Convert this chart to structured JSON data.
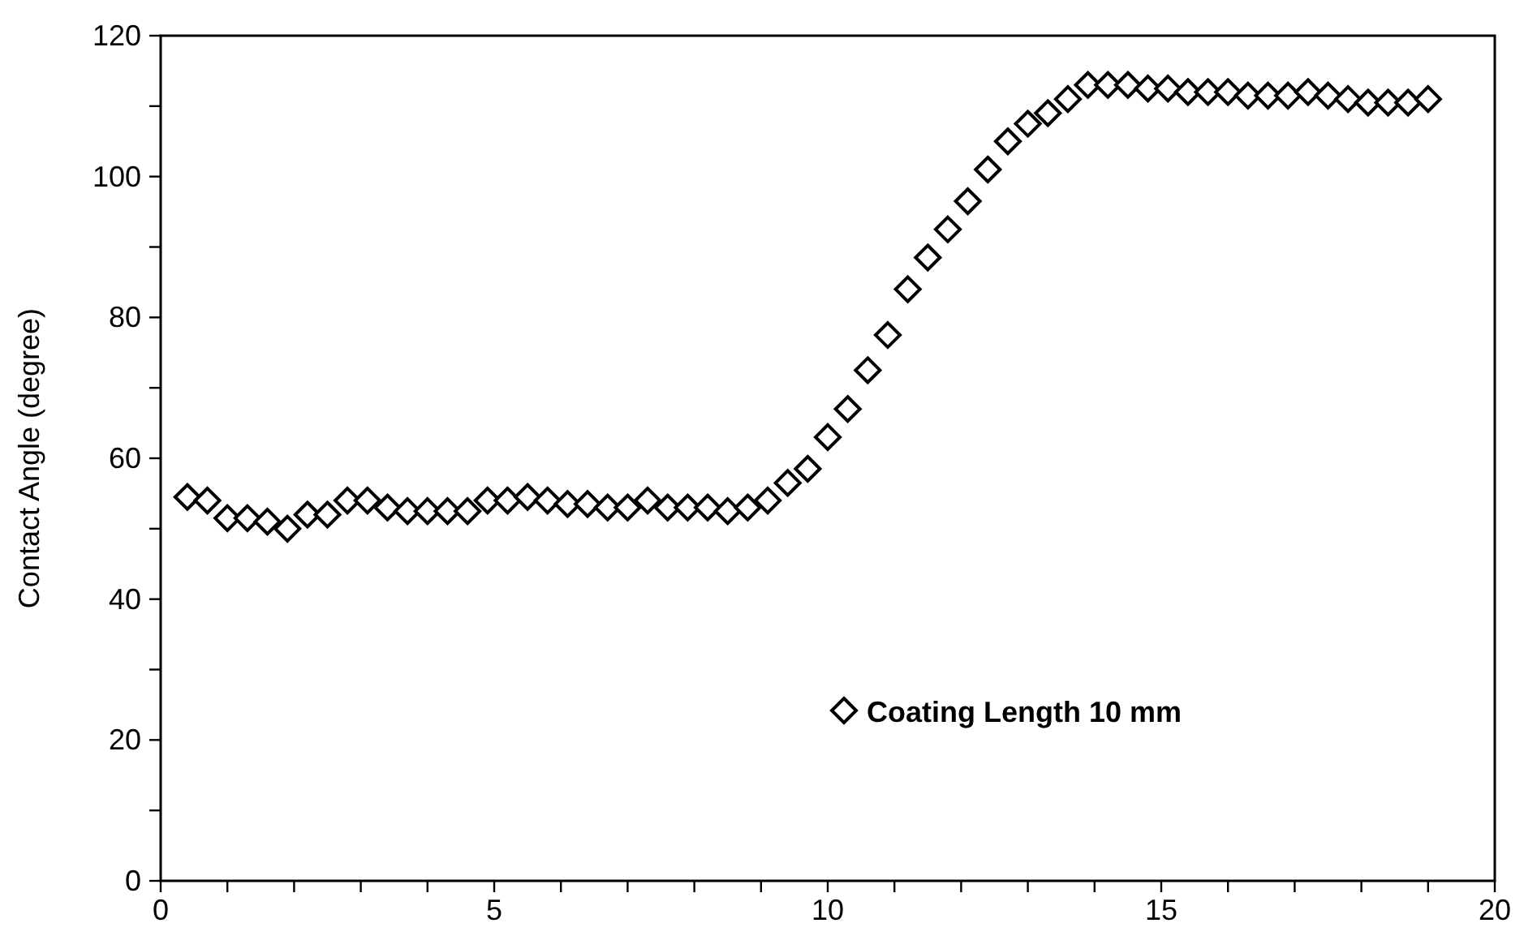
{
  "chart_data": {
    "type": "scatter",
    "ylabel": "Contact Angle (degree)",
    "x": [
      0.4,
      0.7,
      1.0,
      1.3,
      1.6,
      1.9,
      2.2,
      2.5,
      2.8,
      3.1,
      3.4,
      3.7,
      4.0,
      4.3,
      4.6,
      4.9,
      5.2,
      5.5,
      5.8,
      6.1,
      6.4,
      6.7,
      7.0,
      7.3,
      7.6,
      7.9,
      8.2,
      8.5,
      8.8,
      9.1,
      9.4,
      9.7,
      10.0,
      10.3,
      10.6,
      10.9,
      11.2,
      11.5,
      11.8,
      12.1,
      12.4,
      12.7,
      13.0,
      13.3,
      13.6,
      13.9,
      14.2,
      14.5,
      14.8,
      15.1,
      15.4,
      15.7,
      16.0,
      16.3,
      16.6,
      16.9,
      17.2,
      17.5,
      17.8,
      18.1,
      18.4,
      18.7,
      19.0
    ],
    "series": [
      {
        "name": "Coating Length 10 mm",
        "color": "#000000",
        "values": [
          54.5,
          54,
          51.5,
          51.5,
          51,
          50,
          52,
          52,
          54,
          54,
          53,
          52.5,
          52.5,
          52.5,
          52.5,
          54,
          54,
          54.5,
          54,
          53.5,
          53.5,
          53,
          53,
          54,
          53,
          53,
          53,
          52.5,
          53,
          54,
          56.5,
          58.5,
          63,
          67,
          72.5,
          77.5,
          84,
          88.5,
          92.5,
          96.5,
          101,
          105,
          107.5,
          109,
          111,
          113,
          113,
          113,
          112.5,
          112.5,
          112,
          112,
          112,
          111.5,
          111.5,
          111.5,
          112,
          111.5,
          111,
          110.5,
          110.5,
          110.5,
          111
        ]
      }
    ],
    "xlim": [
      0,
      20
    ],
    "ylim": [
      0,
      120
    ],
    "xticks": [
      0,
      {
        "value": 1,
        "label": null
      },
      {
        "value": 2,
        "label": null
      },
      {
        "value": 3,
        "label": null
      },
      {
        "value": 4,
        "label": null
      },
      5,
      {
        "value": 6,
        "label": null
      },
      {
        "value": 7,
        "label": null
      },
      {
        "value": 8,
        "label": null
      },
      {
        "value": 9,
        "label": null
      },
      10,
      {
        "value": 11,
        "label": null
      },
      {
        "value": 12,
        "label": null
      },
      {
        "value": 13,
        "label": null
      },
      {
        "value": 14,
        "label": null
      },
      15,
      {
        "value": 16,
        "label": null
      },
      {
        "value": 17,
        "label": null
      },
      {
        "value": 18,
        "label": null
      },
      {
        "value": 19,
        "label": null
      },
      20
    ],
    "yticks": [
      0,
      {
        "value": 10,
        "label": null
      },
      20,
      {
        "value": 30,
        "label": null
      },
      40,
      {
        "value": 50,
        "label": null
      },
      60,
      {
        "value": 70,
        "label": null
      },
      80,
      {
        "value": 90,
        "label": null
      },
      100,
      {
        "value": 110,
        "label": null
      },
      120
    ],
    "marker": "diamond",
    "grid": false,
    "legend": "bottom right"
  }
}
